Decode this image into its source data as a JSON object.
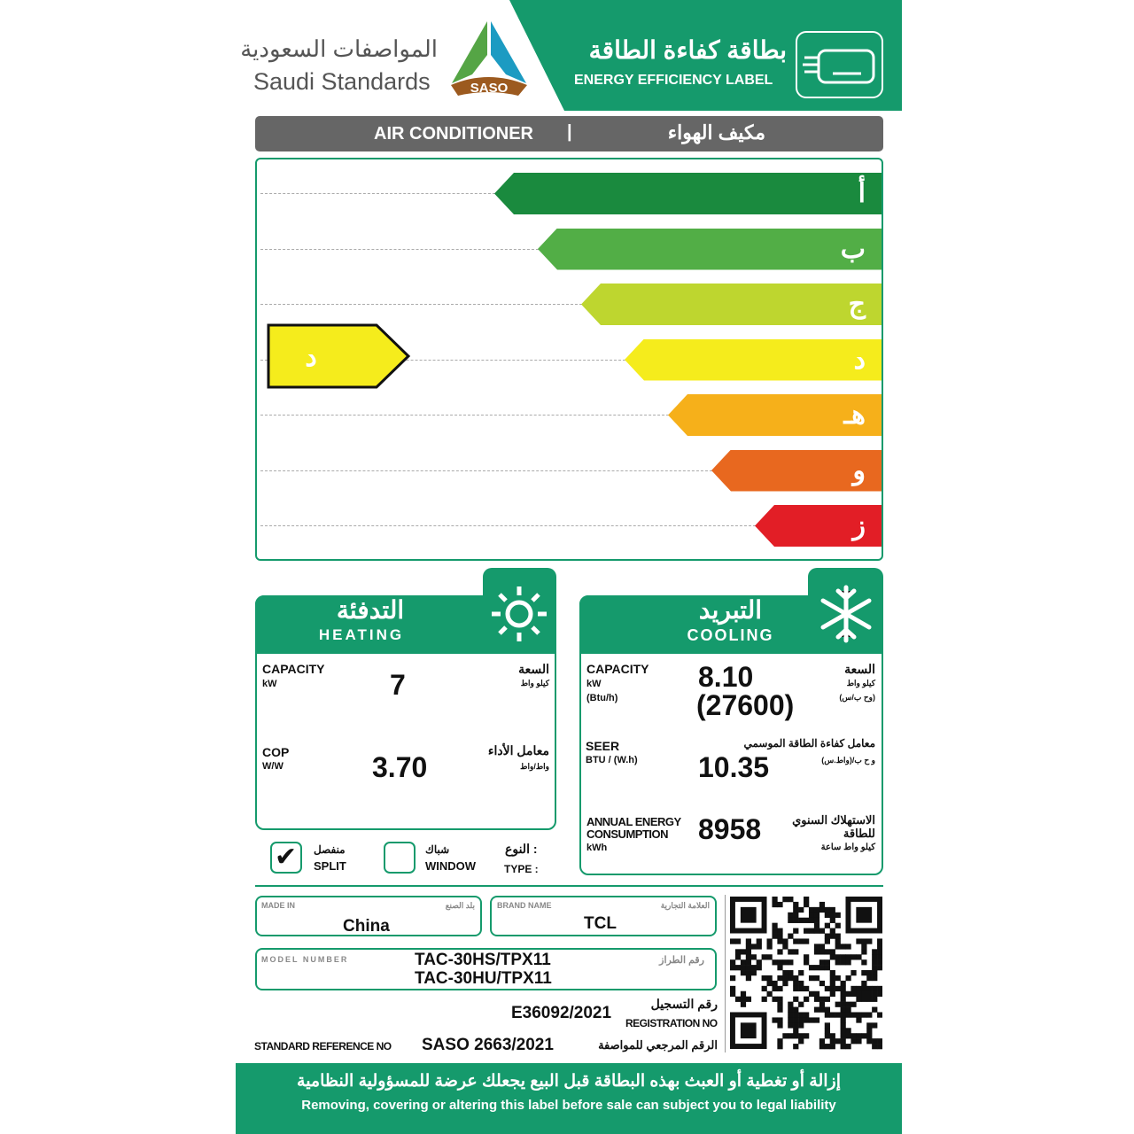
{
  "header": {
    "org_ar": "المواصفات السعودية",
    "org_en": "Saudi Standards",
    "logo_text": "SASO",
    "title_ar": "بطاقة كفاءة الطاقة",
    "title_en": "ENERGY EFFICIENCY LABEL",
    "icon": "air-conditioner-icon"
  },
  "product": {
    "en": "AIR CONDITIONER",
    "ar": "مكيف الهواء"
  },
  "scale": {
    "classes": [
      {
        "label": "أ",
        "color": "#1a8a3e"
      },
      {
        "label": "ب",
        "color": "#52ae46"
      },
      {
        "label": "ج",
        "color": "#bed62f"
      },
      {
        "label": "د",
        "color": "#f5ec1c"
      },
      {
        "label": "هـ",
        "color": "#f6b01a"
      },
      {
        "label": "و",
        "color": "#e8681f"
      },
      {
        "label": "ز",
        "color": "#e21e26"
      }
    ],
    "rating": "د",
    "rating_index": 3
  },
  "heating": {
    "title_ar": "التدفئة",
    "title_en": "HEATING",
    "icon": "sun-icon",
    "capacity_label": "CAPACITY",
    "capacity_unit": "kW",
    "capacity_ar": "السعة",
    "capacity_unit_ar": "كيلو واط",
    "capacity": "7",
    "cop_label": "COP",
    "cop_unit": "W/W",
    "cop_ar": "معامل الأداء",
    "cop_unit_ar": "واط/واط",
    "cop": "3.70"
  },
  "cooling": {
    "title_ar": "التبريد",
    "title_en": "COOLING",
    "icon": "snowflake-icon",
    "capacity_label": "CAPACITY",
    "capacity_unit": "kW",
    "capacity_unit2": "(Btu/h)",
    "capacity_ar": "السعة",
    "capacity_unit_ar": "كيلو واط",
    "capacity_unit2_ar": "(وح ب/س)",
    "capacity": "8.10",
    "capacity_btu": "(27600)",
    "seer_label": "SEER",
    "seer_unit": "BTU / (W.h)",
    "seer_ar": "معامل كفاءة الطاقة الموسمي",
    "seer_unit_ar": "و ح ب/(واط.س)",
    "seer": "10.35",
    "aec_label1": "ANNUAL ENERGY",
    "aec_label2": "CONSUMPTION",
    "aec_unit": "kWh",
    "aec_ar1": "الاستهلاك السنوي",
    "aec_ar2": "للطاقة",
    "aec_unit_ar": "كيلو واط ساعة",
    "aec": "8958"
  },
  "type": {
    "label_ar": "النوع :",
    "label_en": "TYPE :",
    "split_ar": "منفصل",
    "split_en": "SPLIT",
    "split_checked": true,
    "window_ar": "شباك",
    "window_en": "WINDOW",
    "window_checked": false
  },
  "info": {
    "made_in_label": "MADE IN",
    "made_in_ar": "بلد الصنع",
    "made_in": "China",
    "brand_label": "BRAND  NAME",
    "brand_ar": "العلامة التجارية",
    "brand": "TCL",
    "model_label": "MODEL NUMBER",
    "model_ar": "رقم الطراز",
    "model1": "TAC-30HS/TPX11",
    "model2": "TAC-30HU/TPX11",
    "reg_ar": "رقم التسجيل",
    "reg_en": "REGISTRATION NO",
    "reg": "E36092/2021",
    "std_en": "STANDARD REFERENCE NO",
    "std_ar": "الرقم المرجعي للمواصفة",
    "std": "SASO 2663/2021"
  },
  "footer": {
    "ar": "إزالة أو تغطية أو العبث بهذه البطاقة قبل البيع يجعلك عرضة للمسؤولية النظامية",
    "en": "Removing, covering or altering this label before sale can subject you to legal liability"
  }
}
